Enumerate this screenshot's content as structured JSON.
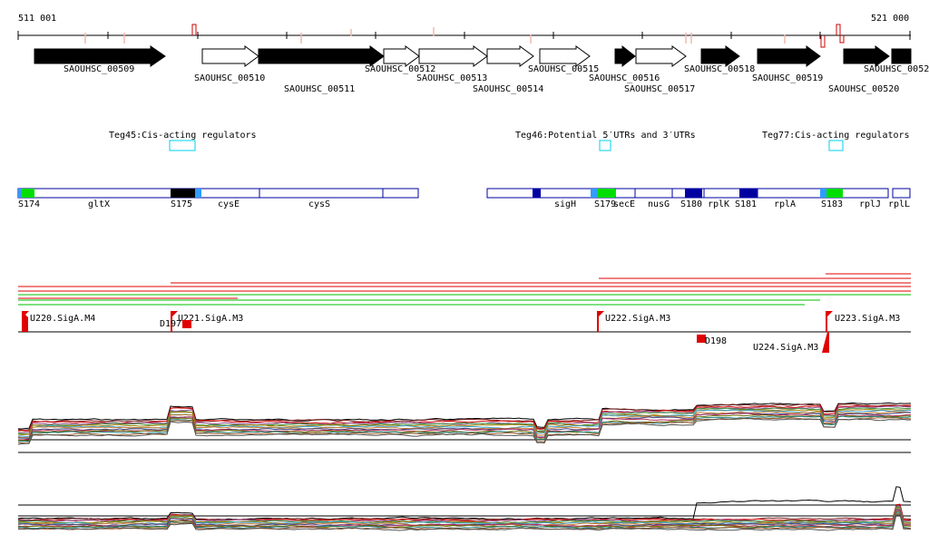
{
  "ruler": {
    "start_label": "511 001",
    "end_label": "521 000"
  },
  "genes": [
    {
      "name": "SAOUHSC_00509",
      "strand": "+",
      "filled": true
    },
    {
      "name": "SAOUHSC_00510",
      "strand": "+",
      "filled": false
    },
    {
      "name": "SAOUHSC_00511",
      "strand": "+",
      "filled": true
    },
    {
      "name": "SAOUHSC_00512",
      "strand": "+",
      "filled": false
    },
    {
      "name": "SAOUHSC_00513",
      "strand": "+",
      "filled": false
    },
    {
      "name": "SAOUHSC_00514",
      "strand": "+",
      "filled": false
    },
    {
      "name": "SAOUHSC_00515",
      "strand": "+",
      "filled": false
    },
    {
      "name": "SAOUHSC_00516",
      "strand": "+",
      "filled": true
    },
    {
      "name": "SAOUHSC_00517",
      "strand": "+",
      "filled": false
    },
    {
      "name": "SAOUHSC_00518",
      "strand": "+",
      "filled": true
    },
    {
      "name": "SAOUHSC_00519",
      "strand": "+",
      "filled": true
    },
    {
      "name": "SAOUHSC_00520",
      "strand": "+",
      "filled": true
    },
    {
      "name": "SAOUHSC_0052",
      "strand": "+",
      "filled": true
    }
  ],
  "regulators": [
    {
      "label": "Teg45:Cis-acting regulators"
    },
    {
      "label": "Teg46:Potential 5′UTRs and 3′UTRs"
    },
    {
      "label": "Teg77:Cis-acting regulators"
    }
  ],
  "annotation_labels": [
    "S174",
    "gltX",
    "S175",
    "cysE",
    "cysS",
    "sigH",
    "S179",
    "secE",
    "nusG",
    "S180",
    "rplK",
    "S181",
    "rplA",
    "S183",
    "rplJ",
    "rplL"
  ],
  "promoters": [
    {
      "label": "U220.SigA.M4"
    },
    {
      "label": "U221.SigA.M3"
    },
    {
      "label": "U222.SigA.M3"
    },
    {
      "label": "U223.SigA.M3"
    },
    {
      "label": "U224.SigA.M3"
    }
  ],
  "terminators": [
    {
      "label": "D197"
    },
    {
      "label": "D198"
    }
  ],
  "colors": {
    "feature_outline": "#0000a0",
    "srna_green": "#00dd00",
    "srna_lightblue": "#2f9cff",
    "darkblue": "#0000a0",
    "black": "#000000",
    "red": "#e00000",
    "green": "#00c000",
    "teg_box": "#00d0f0"
  }
}
